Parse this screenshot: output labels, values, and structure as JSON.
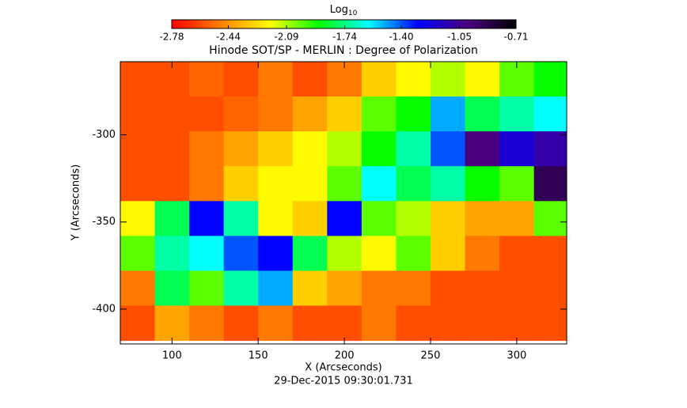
{
  "chart_data": {
    "type": "heatmap",
    "title": "Hinode SOT/SP - MERLIN : Degree of Polarization",
    "colorbar_label_base": "Log",
    "colorbar_label_sub": "10",
    "x_label": "X (Arcseconds)",
    "y_label": "Y (Arcseconds)",
    "footer": "29-Dec-2015 09:30:01.731",
    "xlim": [
      70,
      329
    ],
    "ylim": [
      -420,
      -258
    ],
    "xticks": [
      100,
      150,
      200,
      250,
      300
    ],
    "yticks": [
      -300,
      -350,
      -400
    ],
    "zlim": [
      -2.78,
      -0.71
    ],
    "zticks": [
      -2.78,
      -2.44,
      -2.09,
      -1.74,
      {
        "value": -1.4,
        "label": "-1.40"
      },
      -1.05,
      -0.71
    ],
    "colormap": [
      "#ff0000",
      "#ff8000",
      "#ffff00",
      "#00ff00",
      "#00ffff",
      "#0000ff",
      "#4b0082",
      "#000000"
    ],
    "x": [
      80,
      100,
      120,
      140,
      160,
      180,
      200,
      220,
      240,
      260,
      280,
      300,
      320
    ],
    "y": [
      -268,
      -288,
      -308,
      -328,
      -348,
      -368,
      -388,
      -408
    ],
    "z": [
      [
        -2.6,
        -2.6,
        -2.55,
        -2.6,
        -2.5,
        -2.6,
        -2.5,
        -2.3,
        -2.2,
        -2.1,
        -2.2,
        -2.0,
        -1.9
      ],
      [
        -2.6,
        -2.6,
        -2.6,
        -2.55,
        -2.5,
        -2.4,
        -2.3,
        -2.0,
        -1.9,
        -1.5,
        -1.8,
        -1.7,
        -1.6
      ],
      [
        -2.6,
        -2.6,
        -2.5,
        -2.4,
        -2.3,
        -2.2,
        -2.1,
        -1.9,
        -1.7,
        -1.4,
        -1.0,
        -1.2,
        -1.1
      ],
      [
        -2.6,
        -2.6,
        -2.5,
        -2.3,
        -2.2,
        -2.2,
        -2.0,
        -1.6,
        -1.8,
        -1.7,
        -1.9,
        -2.0,
        -0.9
      ],
      [
        -2.2,
        -1.8,
        -1.3,
        -1.7,
        -2.2,
        -2.3,
        -1.3,
        -2.0,
        -2.1,
        -2.3,
        -2.4,
        -2.4,
        -2.0
      ],
      [
        -2.0,
        -1.7,
        -1.6,
        -1.4,
        -1.3,
        -1.8,
        -2.1,
        -2.2,
        -2.0,
        -2.3,
        -2.5,
        -2.6,
        -2.6
      ],
      [
        -2.5,
        -1.8,
        -2.0,
        -1.7,
        -1.5,
        -2.3,
        -2.4,
        -2.5,
        -2.5,
        -2.6,
        -2.6,
        -2.6,
        -2.6
      ],
      [
        -2.6,
        -2.4,
        -2.5,
        -2.6,
        -2.5,
        -2.6,
        -2.6,
        -2.5,
        -2.6,
        -2.6,
        -2.6,
        -2.6,
        -2.6
      ]
    ]
  }
}
